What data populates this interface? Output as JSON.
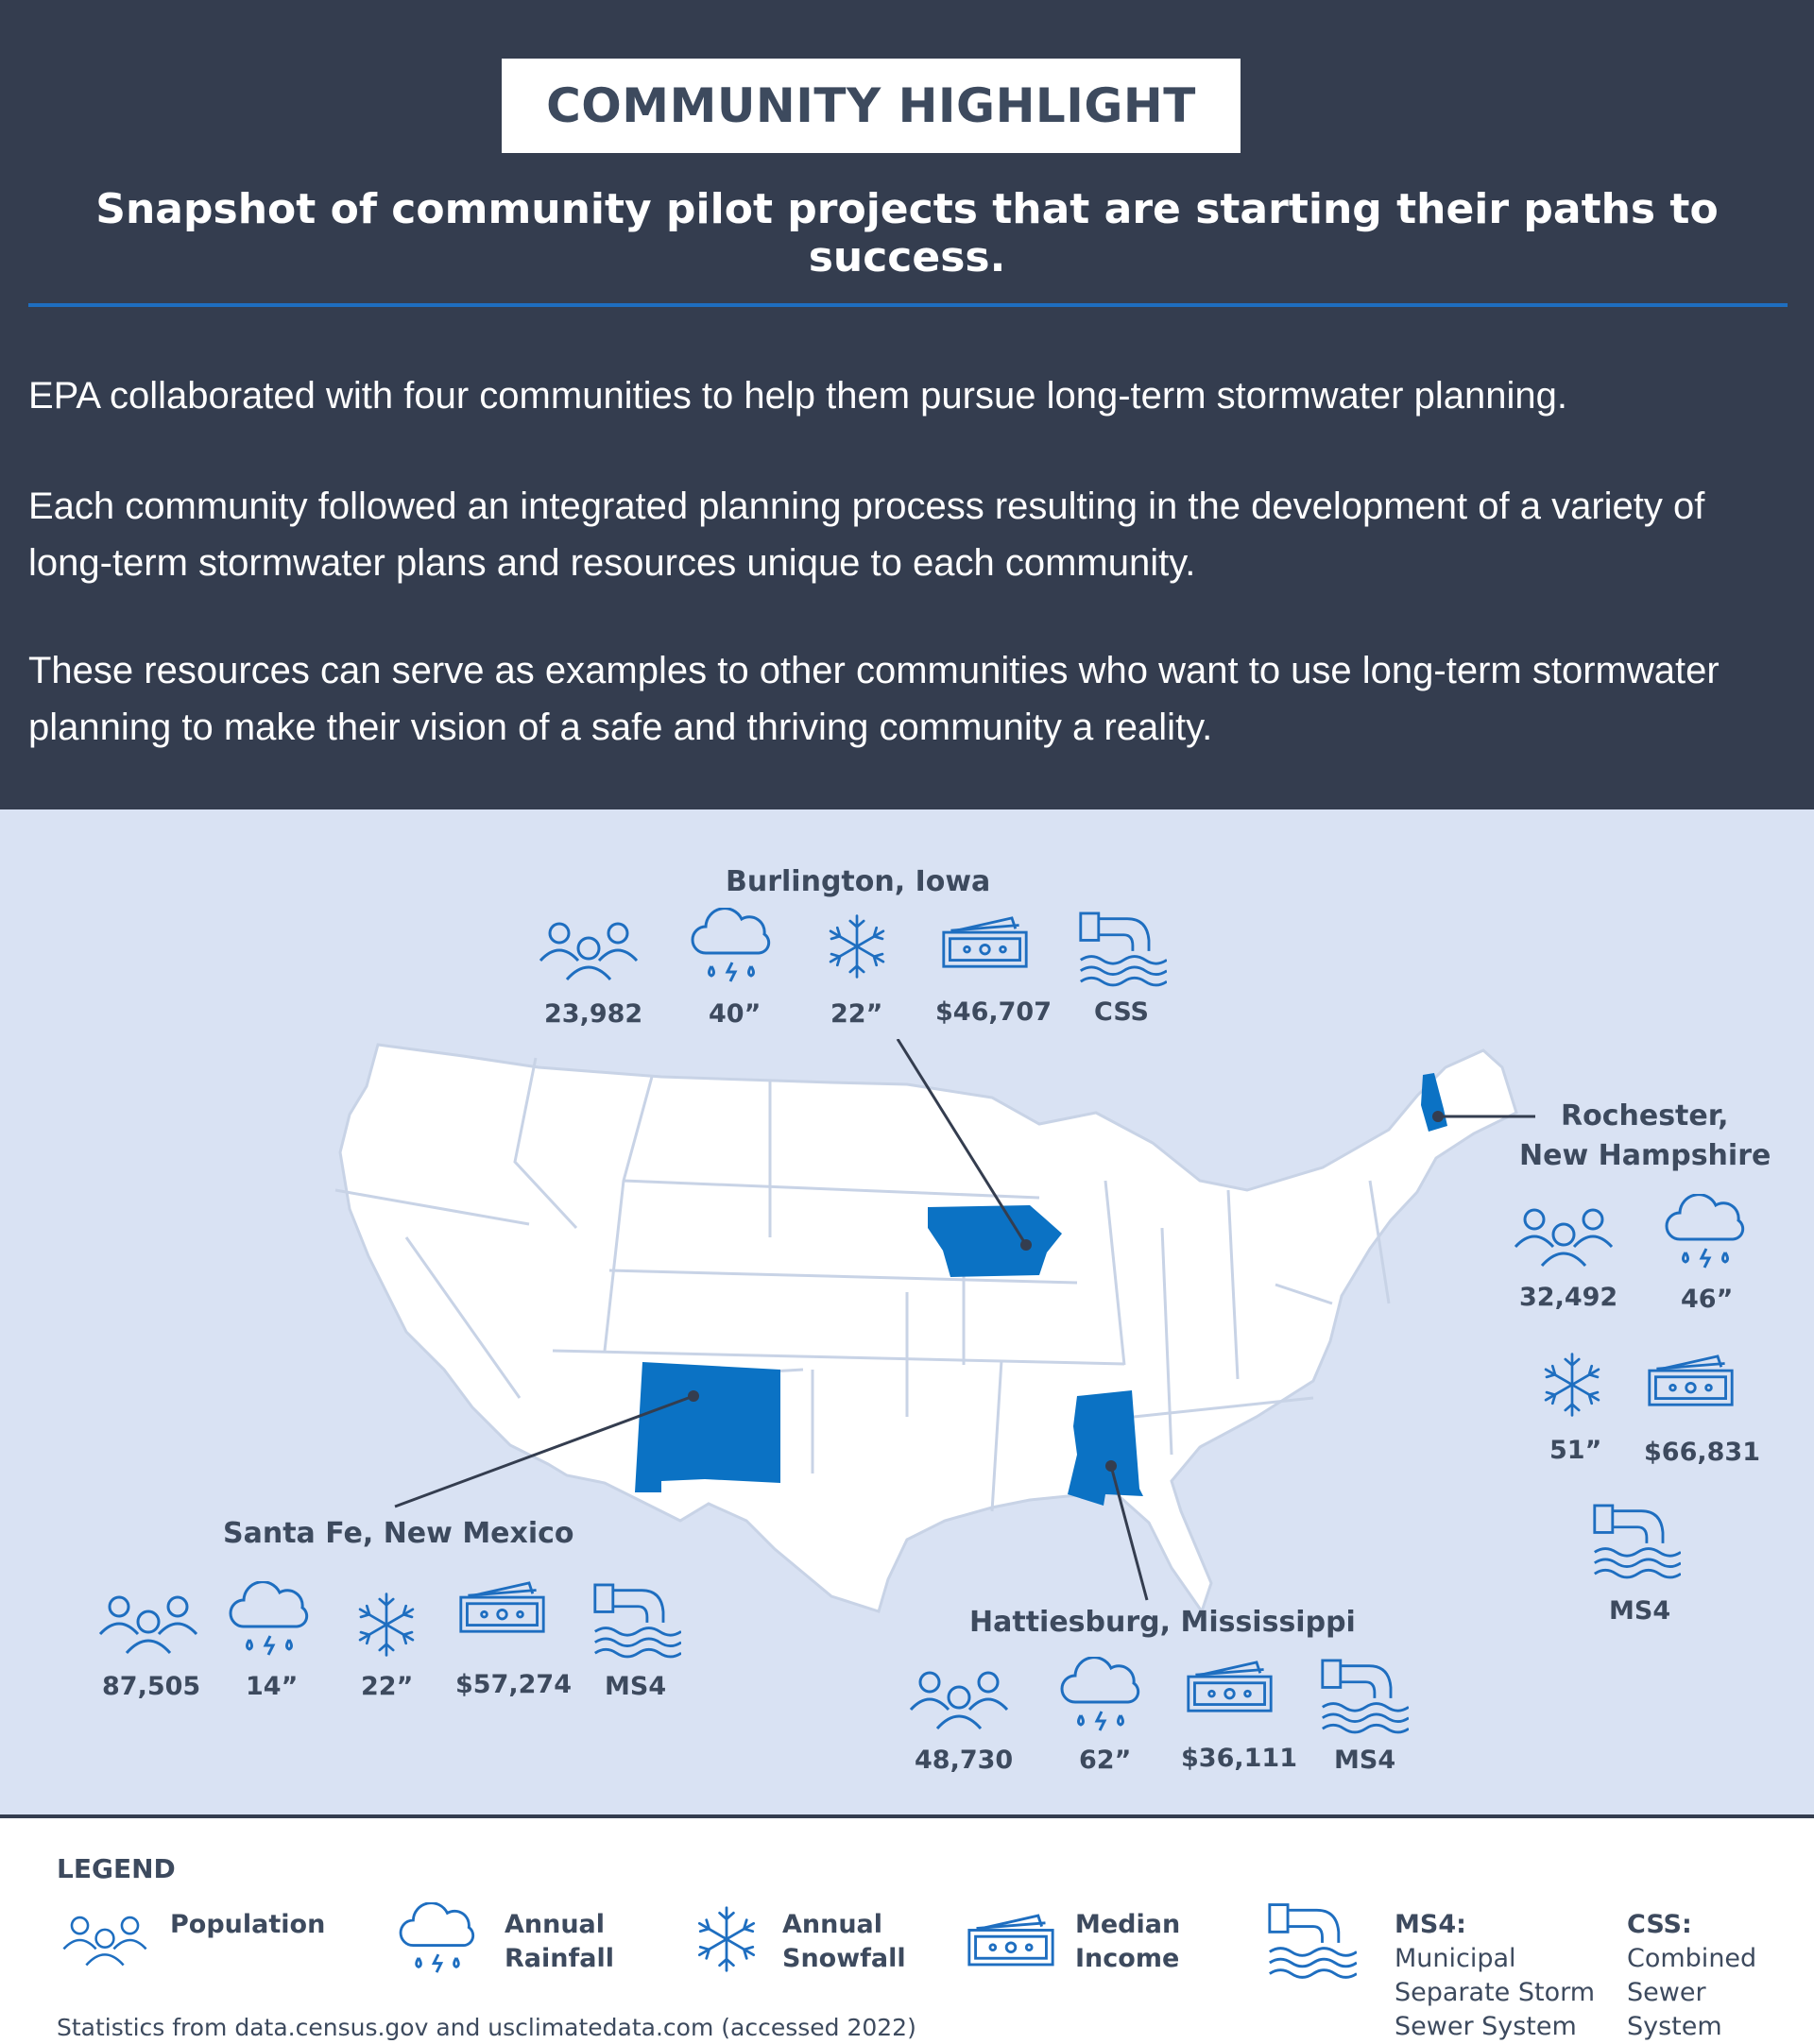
{
  "header": {
    "badge": "COMMUNITY HIGHLIGHT",
    "subtitle": "Snapshot of community pilot projects that are starting their paths to success."
  },
  "intro": {
    "p1": "EPA collaborated with four communities to help them pursue long-term stormwater planning.",
    "p2": "Each community followed an integrated planning process resulting in the development of a variety of long-term stormwater plans and resources unique to each community.",
    "p3": "These resources can serve as examples to other communities who want to use long-term stormwater planning to make their vision of a safe and thriving community a reality."
  },
  "communities": {
    "burlington": {
      "name": "Burlington, Iowa",
      "population": "23,982",
      "rainfall": "40”",
      "snowfall": "22”",
      "income": "$46,707",
      "system": "CSS"
    },
    "rochester": {
      "name_line1": "Rochester,",
      "name_line2": "New Hampshire",
      "population": "32,492",
      "rainfall": "46”",
      "snowfall": "51”",
      "income": "$66,831",
      "system": "MS4"
    },
    "santa_fe": {
      "name": "Santa Fe, New Mexico",
      "population": "87,505",
      "rainfall": "14”",
      "snowfall": "22”",
      "income": "$57,274",
      "system": "MS4"
    },
    "hattiesburg": {
      "name": "Hattiesburg, Mississippi",
      "population": "48,730",
      "rainfall": "62”",
      "income": "$36,111",
      "system": "MS4"
    }
  },
  "legend": {
    "title": "LEGEND",
    "population": "Population",
    "rainfall_1": "Annual",
    "rainfall_2": "Rainfall",
    "snowfall_1": "Annual",
    "snowfall_2": "Snowfall",
    "income_1": "Median",
    "income_2": "Income",
    "ms4_1": "MS4:",
    "ms4_2": "Municipal",
    "ms4_3": "Separate Storm",
    "ms4_4": "Sewer System",
    "css_1": "CSS:",
    "css_2": "Combined",
    "css_3": "Sewer",
    "css_4": "System"
  },
  "source": "Statistics from data.census.gov and usclimatedata.com (accessed 2022)",
  "colors": {
    "dark": "#343d4f",
    "accent": "#1e6ec0",
    "map_bg": "#d9e2f3",
    "highlight": "#0b72c4"
  }
}
